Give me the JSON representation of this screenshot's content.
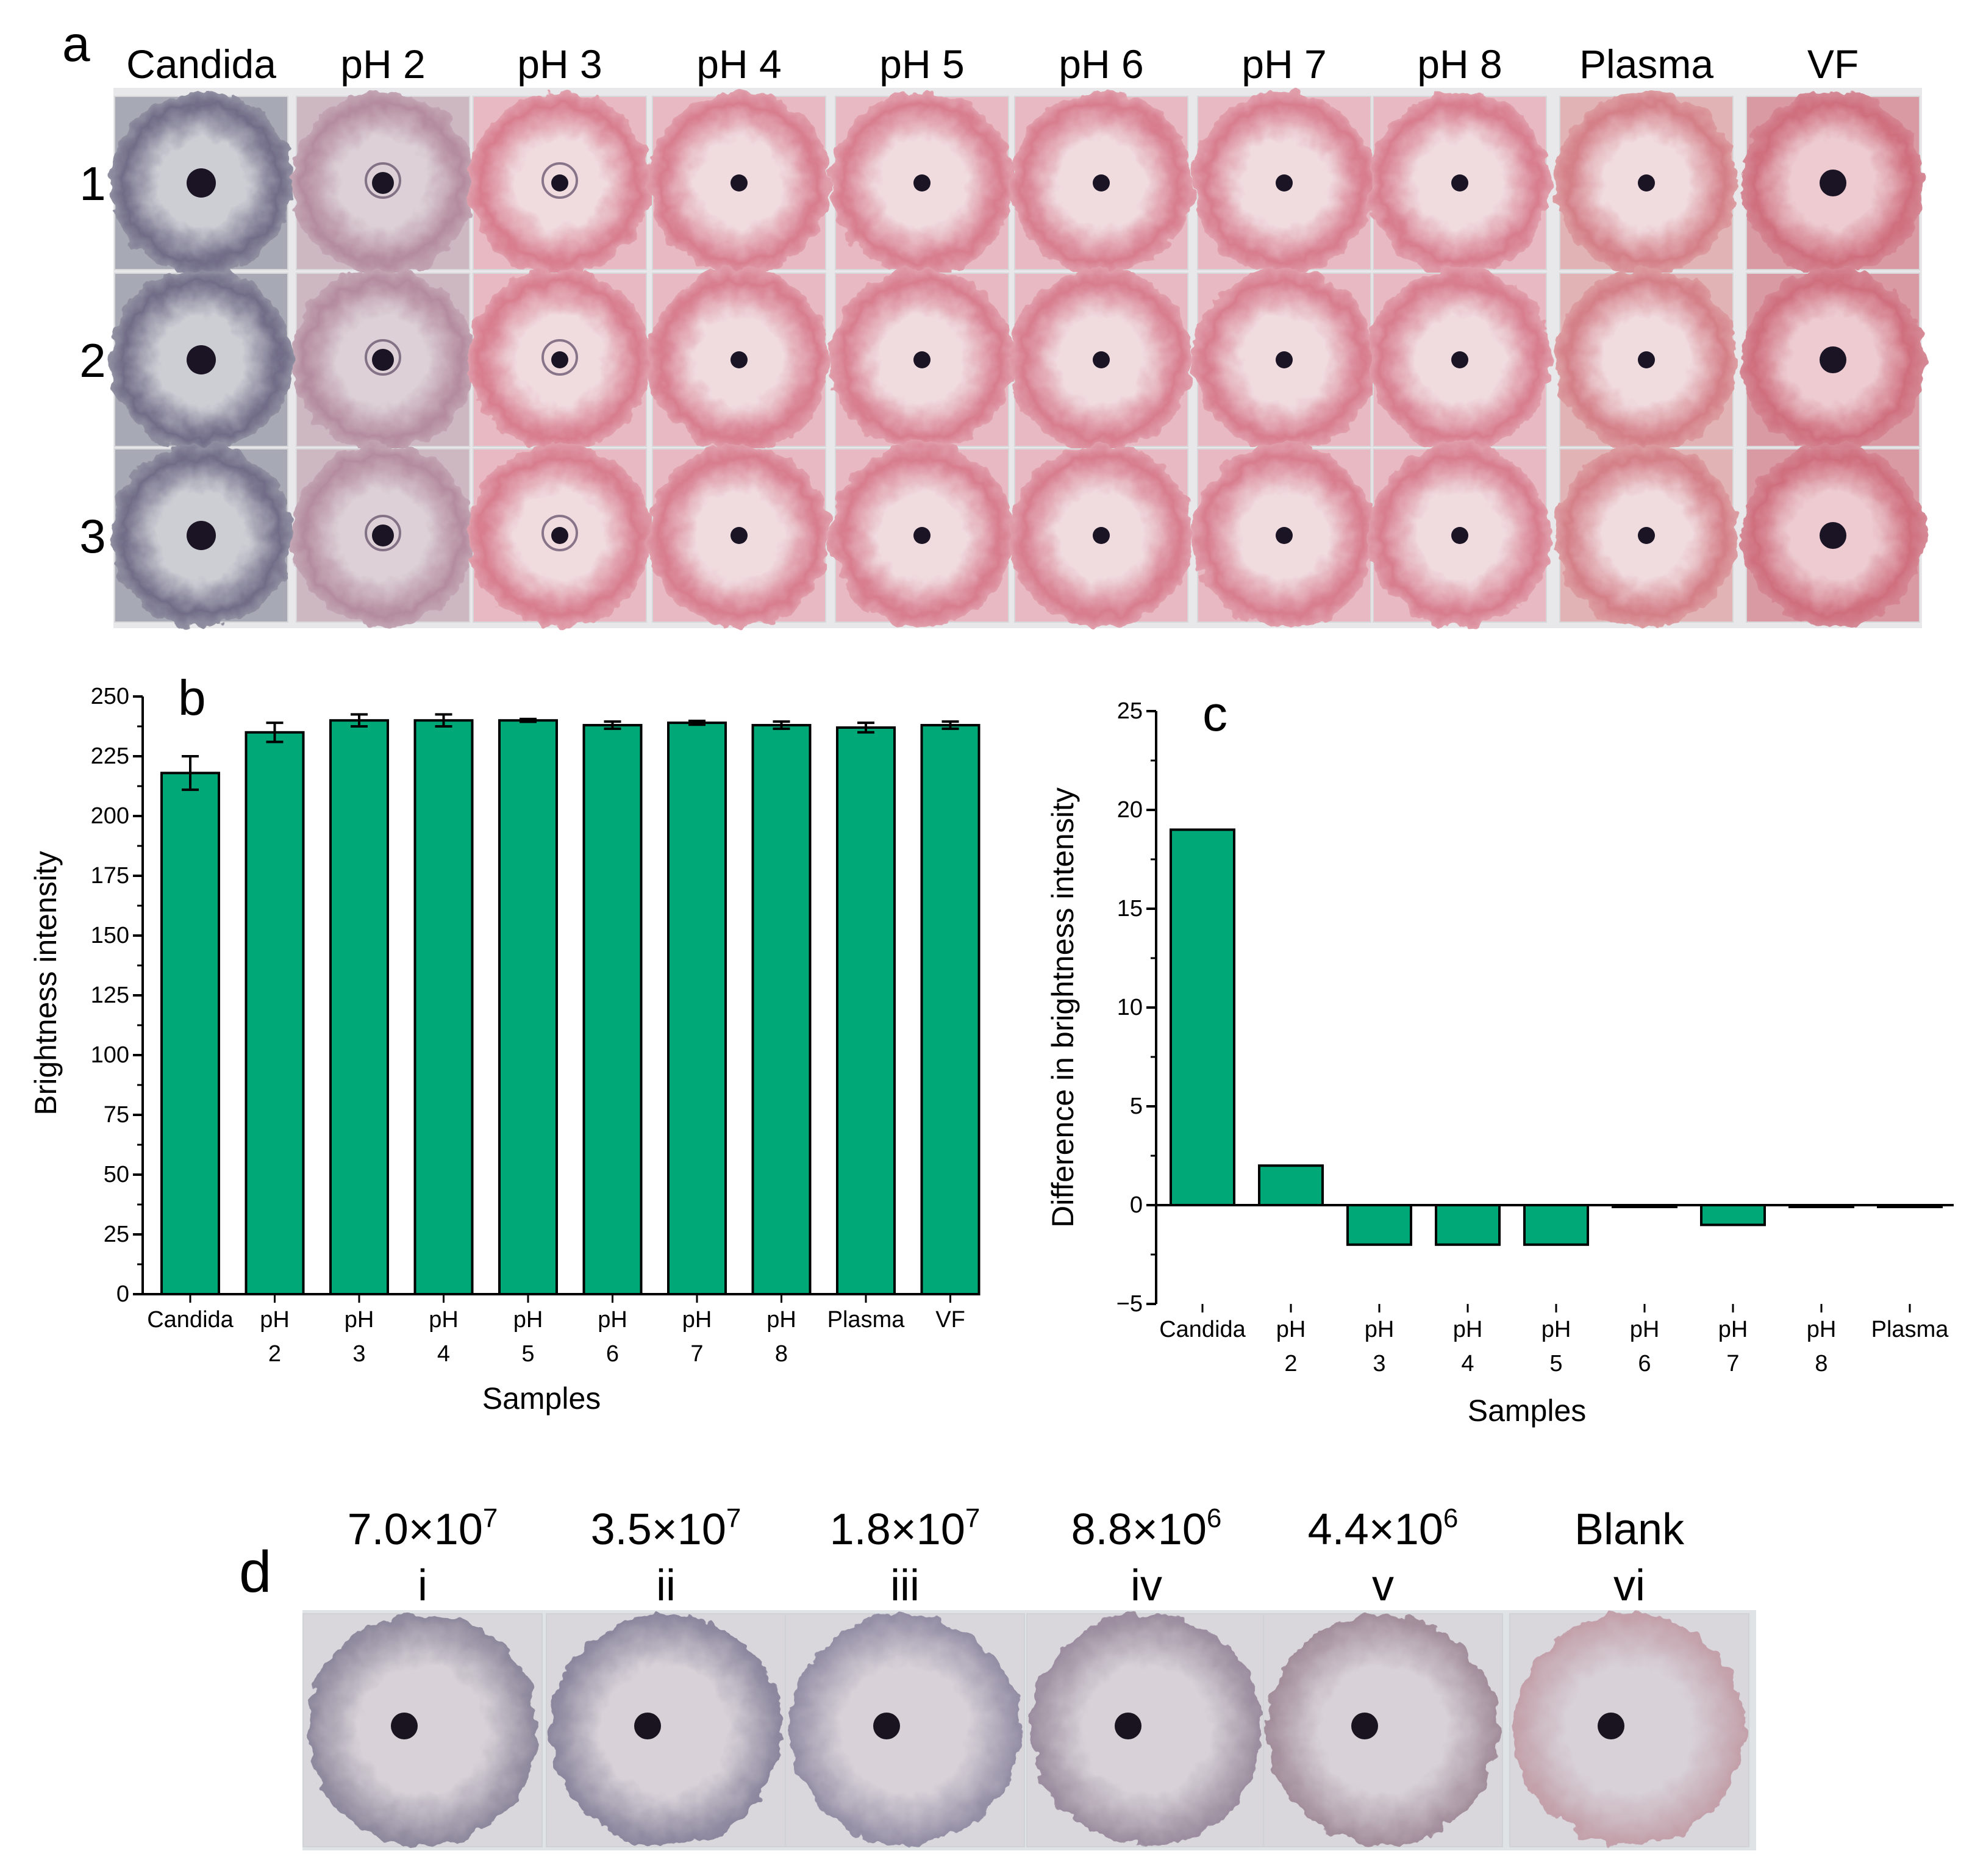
{
  "panel_a": {
    "letter": "a",
    "columns": [
      "Candida",
      "pH 2",
      "pH 3",
      "pH 4",
      "pH 5",
      "pH 6",
      "pH 7",
      "pH 8",
      "Plasma",
      "VF"
    ],
    "rows": [
      "1",
      "2",
      "3"
    ],
    "colors": {
      "candida_ring": "#6f6a86",
      "candida_center": "#cfd0d6",
      "ph2_ring": "#b48a9e",
      "ph2_center": "#ded2d8",
      "pink_ring": "#d77a8c",
      "pink_center": "#f1dde1",
      "plasma_ring": "#d47d86",
      "vf_ring": "#cf6d7c",
      "dot": "#1b1424"
    }
  },
  "panel_d": {
    "letter": "d",
    "samples": [
      {
        "mantissa": "7.0×10",
        "exponent": "7",
        "numeral": "i"
      },
      {
        "mantissa": "3.5×10",
        "exponent": "7",
        "numeral": "ii"
      },
      {
        "mantissa": "1.8×10",
        "exponent": "7",
        "numeral": "iii"
      },
      {
        "mantissa": "8.8×10",
        "exponent": "6",
        "numeral": "iv"
      },
      {
        "mantissa": "4.4×10",
        "exponent": "6",
        "numeral": "v"
      },
      {
        "mantissa": "Blank",
        "exponent": "",
        "numeral": "vi"
      }
    ],
    "colors": [
      "#8a8499",
      "#87829a",
      "#918ba3",
      "#988a9c",
      "#a08a98",
      "#c29ea8"
    ]
  },
  "chart_data": [
    {
      "panel": "b",
      "type": "bar",
      "letter": "b",
      "title": "",
      "xlabel": "Samples",
      "ylabel": "Brightness intensity",
      "categories": [
        [
          "Candida"
        ],
        [
          "pH",
          "2"
        ],
        [
          "pH",
          "3"
        ],
        [
          "pH",
          "4"
        ],
        [
          "pH",
          "5"
        ],
        [
          "pH",
          "6"
        ],
        [
          "pH",
          "7"
        ],
        [
          "pH",
          "8"
        ],
        [
          "Plasma"
        ],
        [
          "VF"
        ]
      ],
      "values": [
        218,
        235,
        240,
        240,
        240,
        238,
        239,
        238,
        237,
        238
      ],
      "errors": [
        7,
        4,
        2.5,
        2.5,
        0.6,
        1.5,
        0.8,
        1.5,
        2,
        1.5
      ],
      "ylim": [
        0,
        250
      ],
      "yticks": [
        0,
        25,
        50,
        75,
        100,
        125,
        150,
        175,
        200,
        225,
        250
      ],
      "bar_color": "#00a878",
      "grid": false,
      "legend": "none"
    },
    {
      "panel": "c",
      "type": "bar",
      "letter": "c",
      "title": "",
      "xlabel": "Samples",
      "ylabel": "Difference in brightness intensity",
      "categories": [
        [
          "Candida"
        ],
        [
          "pH",
          "2"
        ],
        [
          "pH",
          "3"
        ],
        [
          "pH",
          "4"
        ],
        [
          "pH",
          "5"
        ],
        [
          "pH",
          "6"
        ],
        [
          "pH",
          "7"
        ],
        [
          "pH",
          "8"
        ],
        [
          "Plasma"
        ]
      ],
      "values": [
        19,
        2,
        -2,
        -2,
        -2,
        0,
        -1,
        0,
        0
      ],
      "ylim": [
        -5,
        25
      ],
      "yticks": [
        -5,
        0,
        5,
        10,
        15,
        20,
        25
      ],
      "bar_color": "#00a878",
      "grid": false,
      "legend": "none"
    }
  ]
}
